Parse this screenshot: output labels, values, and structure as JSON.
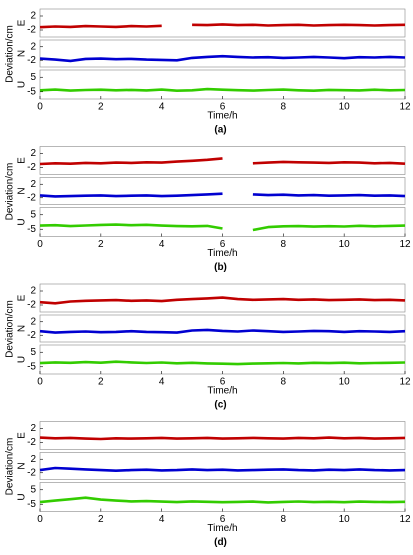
{
  "chart_data": [
    {
      "type": "line",
      "caption": "(a)",
      "xlabel": "Time/h",
      "ylabel": "Deviation/cm",
      "x": [
        0,
        0.5,
        1,
        1.5,
        2,
        2.5,
        3,
        3.5,
        4,
        4.5,
        5,
        5.5,
        6,
        6.5,
        7,
        7.5,
        8,
        8.5,
        9,
        9.5,
        10,
        10.5,
        11,
        11.5,
        12
      ],
      "xlim": [
        0,
        12
      ],
      "xticks": [
        0,
        2,
        4,
        6,
        8,
        10,
        12
      ],
      "subplots": [
        {
          "label": "E",
          "ylim": [
            -4,
            4
          ],
          "yticks": [
            2,
            -2
          ],
          "series": [
            {
              "color": "#c00000",
              "values": [
                -1.2,
                -1.0,
                -1.1,
                -0.9,
                -1.0,
                -1.1,
                -0.9,
                -1.0,
                -0.8,
                null,
                -0.5,
                -0.6,
                -0.4,
                -0.6,
                -0.5,
                -0.7,
                -0.6,
                -0.5,
                -0.7,
                -0.6,
                -0.5,
                -0.6,
                -0.7,
                -0.6,
                -0.5
              ]
            }
          ]
        },
        {
          "label": "N",
          "ylim": [
            -4,
            4
          ],
          "yticks": [
            2,
            -2
          ],
          "series": [
            {
              "color": "#0000d0",
              "values": [
                -1.5,
                -1.8,
                -2.2,
                -1.6,
                -1.5,
                -1.7,
                -1.6,
                -1.8,
                -1.9,
                -2.0,
                -1.3,
                -1.0,
                -0.8,
                -1.0,
                -1.2,
                -1.1,
                -1.3,
                -1.2,
                -1.0,
                -1.2,
                -1.4,
                -1.1,
                -1.2,
                -1.0,
                -1.2
              ]
            }
          ]
        },
        {
          "label": "U",
          "ylim": [
            -10,
            10
          ],
          "yticks": [
            5,
            -5
          ],
          "series": [
            {
              "color": "#33cc00",
              "values": [
                -4.0,
                -3.5,
                -4.2,
                -3.8,
                -3.6,
                -4.0,
                -3.7,
                -4.1,
                -3.5,
                -4.3,
                -4.0,
                -3.2,
                -3.6,
                -3.9,
                -4.2,
                -3.8,
                -3.5,
                -4.0,
                -4.3,
                -3.7,
                -3.9,
                -4.1,
                -3.6,
                -4.0,
                -3.8
              ]
            }
          ]
        }
      ]
    },
    {
      "type": "line",
      "caption": "(b)",
      "xlabel": "Time/h",
      "ylabel": "Deviation/cm",
      "x": [
        0,
        0.5,
        1,
        1.5,
        2,
        2.5,
        3,
        3.5,
        4,
        4.5,
        5,
        5.5,
        6,
        6.5,
        7,
        7.5,
        8,
        8.5,
        9,
        9.5,
        10,
        10.5,
        11,
        11.5,
        12
      ],
      "xlim": [
        0,
        12
      ],
      "xticks": [
        0,
        2,
        4,
        6,
        8,
        10,
        12
      ],
      "subplots": [
        {
          "label": "E",
          "ylim": [
            -4,
            4
          ],
          "yticks": [
            2,
            -2
          ],
          "series": [
            {
              "color": "#c00000",
              "values": [
                -1.0,
                -0.8,
                -0.9,
                -0.7,
                -0.8,
                -0.6,
                -0.7,
                -0.5,
                -0.6,
                -0.3,
                -0.1,
                0.2,
                0.6,
                null,
                -0.8,
                -0.6,
                -0.4,
                -0.5,
                -0.6,
                -0.7,
                -0.5,
                -0.6,
                -0.8,
                -0.7,
                -0.9
              ]
            }
          ]
        },
        {
          "label": "N",
          "ylim": [
            -4,
            4
          ],
          "yticks": [
            2,
            -2
          ],
          "series": [
            {
              "color": "#0000d0",
              "values": [
                -1.3,
                -1.6,
                -1.5,
                -1.4,
                -1.3,
                -1.5,
                -1.4,
                -1.3,
                -1.5,
                -1.4,
                -1.2,
                -1.0,
                -0.8,
                null,
                -1.0,
                -1.2,
                -1.1,
                -1.3,
                -1.2,
                -1.4,
                -1.3,
                -1.2,
                -1.4,
                -1.3,
                -1.5
              ]
            }
          ]
        },
        {
          "label": "U",
          "ylim": [
            -10,
            10
          ],
          "yticks": [
            5,
            -5
          ],
          "series": [
            {
              "color": "#33cc00",
              "values": [
                -2.5,
                -2.2,
                -2.8,
                -2.4,
                -2.0,
                -1.8,
                -2.2,
                -1.9,
                -2.5,
                -2.8,
                -3.0,
                -2.7,
                -4.5,
                null,
                -5.5,
                -3.5,
                -3.0,
                -2.8,
                -3.2,
                -2.9,
                -3.1,
                -2.6,
                -3.0,
                -2.7,
                -2.5
              ]
            }
          ]
        }
      ]
    },
    {
      "type": "line",
      "caption": "(c)",
      "xlabel": "Time/h",
      "ylabel": "Deviation/cm",
      "x": [
        0,
        0.5,
        1,
        1.5,
        2,
        2.5,
        3,
        3.5,
        4,
        4.5,
        5,
        5.5,
        6,
        6.5,
        7,
        7.5,
        8,
        8.5,
        9,
        9.5,
        10,
        10.5,
        11,
        11.5,
        12
      ],
      "xlim": [
        0,
        12
      ],
      "xticks": [
        0,
        2,
        4,
        6,
        8,
        10,
        12
      ],
      "subplots": [
        {
          "label": "E",
          "ylim": [
            -4,
            4
          ],
          "yticks": [
            2,
            -2
          ],
          "series": [
            {
              "color": "#c00000",
              "values": [
                -1.2,
                -1.5,
                -1.0,
                -0.8,
                -0.7,
                -0.6,
                -0.8,
                -0.7,
                -0.9,
                -0.5,
                -0.3,
                -0.1,
                0.1,
                -0.3,
                -0.5,
                -0.4,
                -0.3,
                -0.5,
                -0.4,
                -0.6,
                -0.5,
                -0.4,
                -0.6,
                -0.5,
                -0.7
              ]
            }
          ]
        },
        {
          "label": "N",
          "ylim": [
            -4,
            4
          ],
          "yticks": [
            2,
            -2
          ],
          "series": [
            {
              "color": "#0000d0",
              "values": [
                -0.8,
                -1.2,
                -1.0,
                -0.9,
                -1.1,
                -1.0,
                -0.8,
                -1.0,
                -1.1,
                -1.2,
                -0.6,
                -0.4,
                -0.7,
                -0.9,
                -0.6,
                -0.8,
                -1.0,
                -0.9,
                -0.7,
                -0.8,
                -1.0,
                -0.8,
                -0.9,
                -1.0,
                -0.8
              ]
            }
          ]
        },
        {
          "label": "U",
          "ylim": [
            -10,
            10
          ],
          "yticks": [
            5,
            -5
          ],
          "series": [
            {
              "color": "#33cc00",
              "values": [
                -2.5,
                -2.0,
                -2.3,
                -1.8,
                -2.2,
                -1.5,
                -2.0,
                -2.4,
                -2.1,
                -2.6,
                -2.3,
                -2.7,
                -2.9,
                -3.2,
                -2.8,
                -2.6,
                -2.4,
                -2.7,
                -2.3,
                -2.5,
                -2.2,
                -2.6,
                -2.4,
                -2.3,
                -2.1
              ]
            }
          ]
        }
      ]
    },
    {
      "type": "line",
      "caption": "(d)",
      "xlabel": "Time/h",
      "ylabel": "Deviation/cm",
      "x": [
        0,
        0.5,
        1,
        1.5,
        2,
        2.5,
        3,
        3.5,
        4,
        4.5,
        5,
        5.5,
        6,
        6.5,
        7,
        7.5,
        8,
        8.5,
        9,
        9.5,
        10,
        10.5,
        11,
        11.5,
        12
      ],
      "xlim": [
        0,
        12
      ],
      "xticks": [
        0,
        2,
        4,
        6,
        8,
        10,
        12
      ],
      "subplots": [
        {
          "label": "E",
          "ylim": [
            -4,
            4
          ],
          "yticks": [
            2,
            -2
          ],
          "series": [
            {
              "color": "#c00000",
              "values": [
                -0.6,
                -0.8,
                -0.7,
                -0.9,
                -1.0,
                -0.8,
                -0.9,
                -0.8,
                -0.7,
                -0.9,
                -0.8,
                -0.7,
                -0.9,
                -0.8,
                -0.7,
                -0.8,
                -0.9,
                -0.7,
                -0.8,
                -0.6,
                -0.8,
                -0.7,
                -0.9,
                -0.8,
                -0.7
              ]
            }
          ]
        },
        {
          "label": "N",
          "ylim": [
            -4,
            4
          ],
          "yticks": [
            2,
            -2
          ],
          "series": [
            {
              "color": "#0000d0",
              "values": [
                -1.2,
                -0.6,
                -0.8,
                -1.0,
                -1.2,
                -1.4,
                -1.2,
                -1.1,
                -1.3,
                -1.2,
                -1.0,
                -1.2,
                -1.1,
                -1.3,
                -1.2,
                -1.1,
                -1.0,
                -1.2,
                -1.3,
                -1.1,
                -1.2,
                -1.0,
                -1.2,
                -1.3,
                -1.2
              ]
            }
          ]
        },
        {
          "label": "U",
          "ylim": [
            -10,
            10
          ],
          "yticks": [
            5,
            -5
          ],
          "series": [
            {
              "color": "#33cc00",
              "values": [
                -3.5,
                -2.5,
                -1.5,
                -0.5,
                -1.8,
                -2.5,
                -3.0,
                -2.8,
                -3.2,
                -3.5,
                -3.0,
                -3.3,
                -3.6,
                -3.4,
                -3.2,
                -3.7,
                -3.4,
                -3.1,
                -3.5,
                -3.3,
                -3.6,
                -3.2,
                -3.4,
                -3.5,
                -3.3
              ]
            }
          ]
        }
      ]
    }
  ]
}
